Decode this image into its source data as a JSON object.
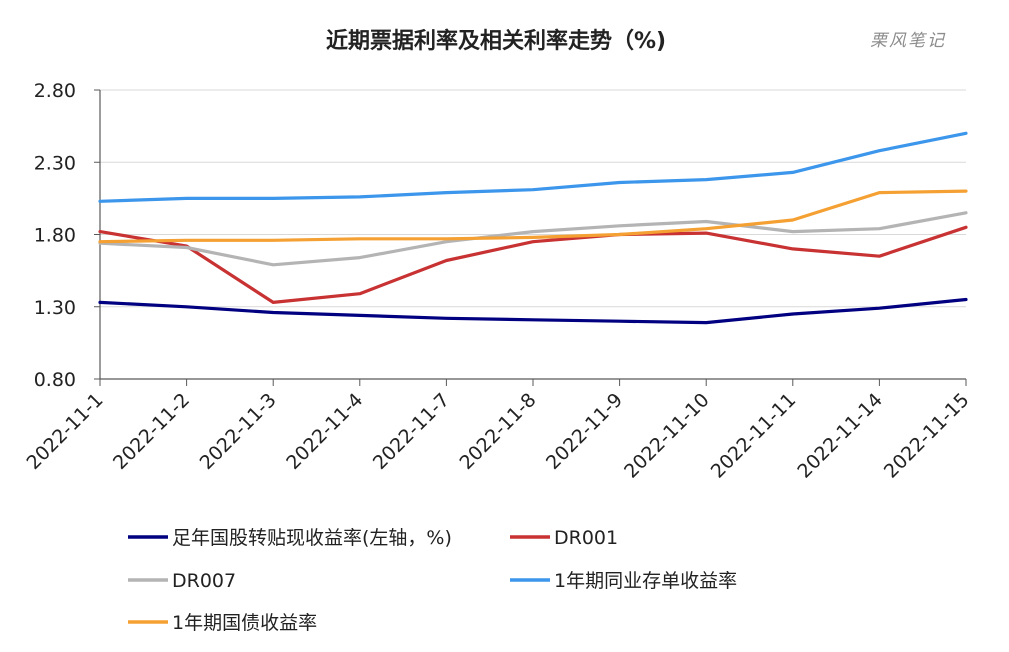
{
  "chart_data": {
    "type": "line",
    "title": "近期票据利率及相关利率走势（%)",
    "watermark": "栗风笔记",
    "ylim": [
      0.8,
      2.8
    ],
    "yticks": [
      "0.80",
      "1.30",
      "1.80",
      "2.30",
      "2.80"
    ],
    "grid": true,
    "legend_position": "bottom",
    "categories": [
      "2022-11-1",
      "2022-11-2",
      "2022-11-3",
      "2022-11-4",
      "2022-11-7",
      "2022-11-8",
      "2022-11-9",
      "2022-11-10",
      "2022-11-11",
      "2022-11-14",
      "2022-11-15"
    ],
    "series": [
      {
        "name": "足年国股转贴现收益率(左轴，%)",
        "color": "#000080",
        "values": [
          1.33,
          1.3,
          1.26,
          1.24,
          1.22,
          1.21,
          1.2,
          1.19,
          1.25,
          1.29,
          1.35
        ]
      },
      {
        "name": "DR001",
        "color": "#c83232",
        "values": [
          1.82,
          1.72,
          1.33,
          1.39,
          1.62,
          1.75,
          1.8,
          1.81,
          1.7,
          1.65,
          1.85
        ]
      },
      {
        "name": "DR007",
        "color": "#b4b4b4",
        "values": [
          1.74,
          1.71,
          1.59,
          1.64,
          1.75,
          1.82,
          1.86,
          1.89,
          1.82,
          1.84,
          1.95
        ]
      },
      {
        "name": "1年期同业存单收益率",
        "color": "#3c96eb",
        "values": [
          2.03,
          2.05,
          2.05,
          2.06,
          2.09,
          2.11,
          2.16,
          2.18,
          2.23,
          2.38,
          2.5
        ]
      },
      {
        "name": "1年期国债收益率",
        "color": "#f5a032",
        "values": [
          1.75,
          1.76,
          1.76,
          1.77,
          1.77,
          1.78,
          1.8,
          1.84,
          1.9,
          2.09,
          2.1
        ]
      }
    ]
  }
}
